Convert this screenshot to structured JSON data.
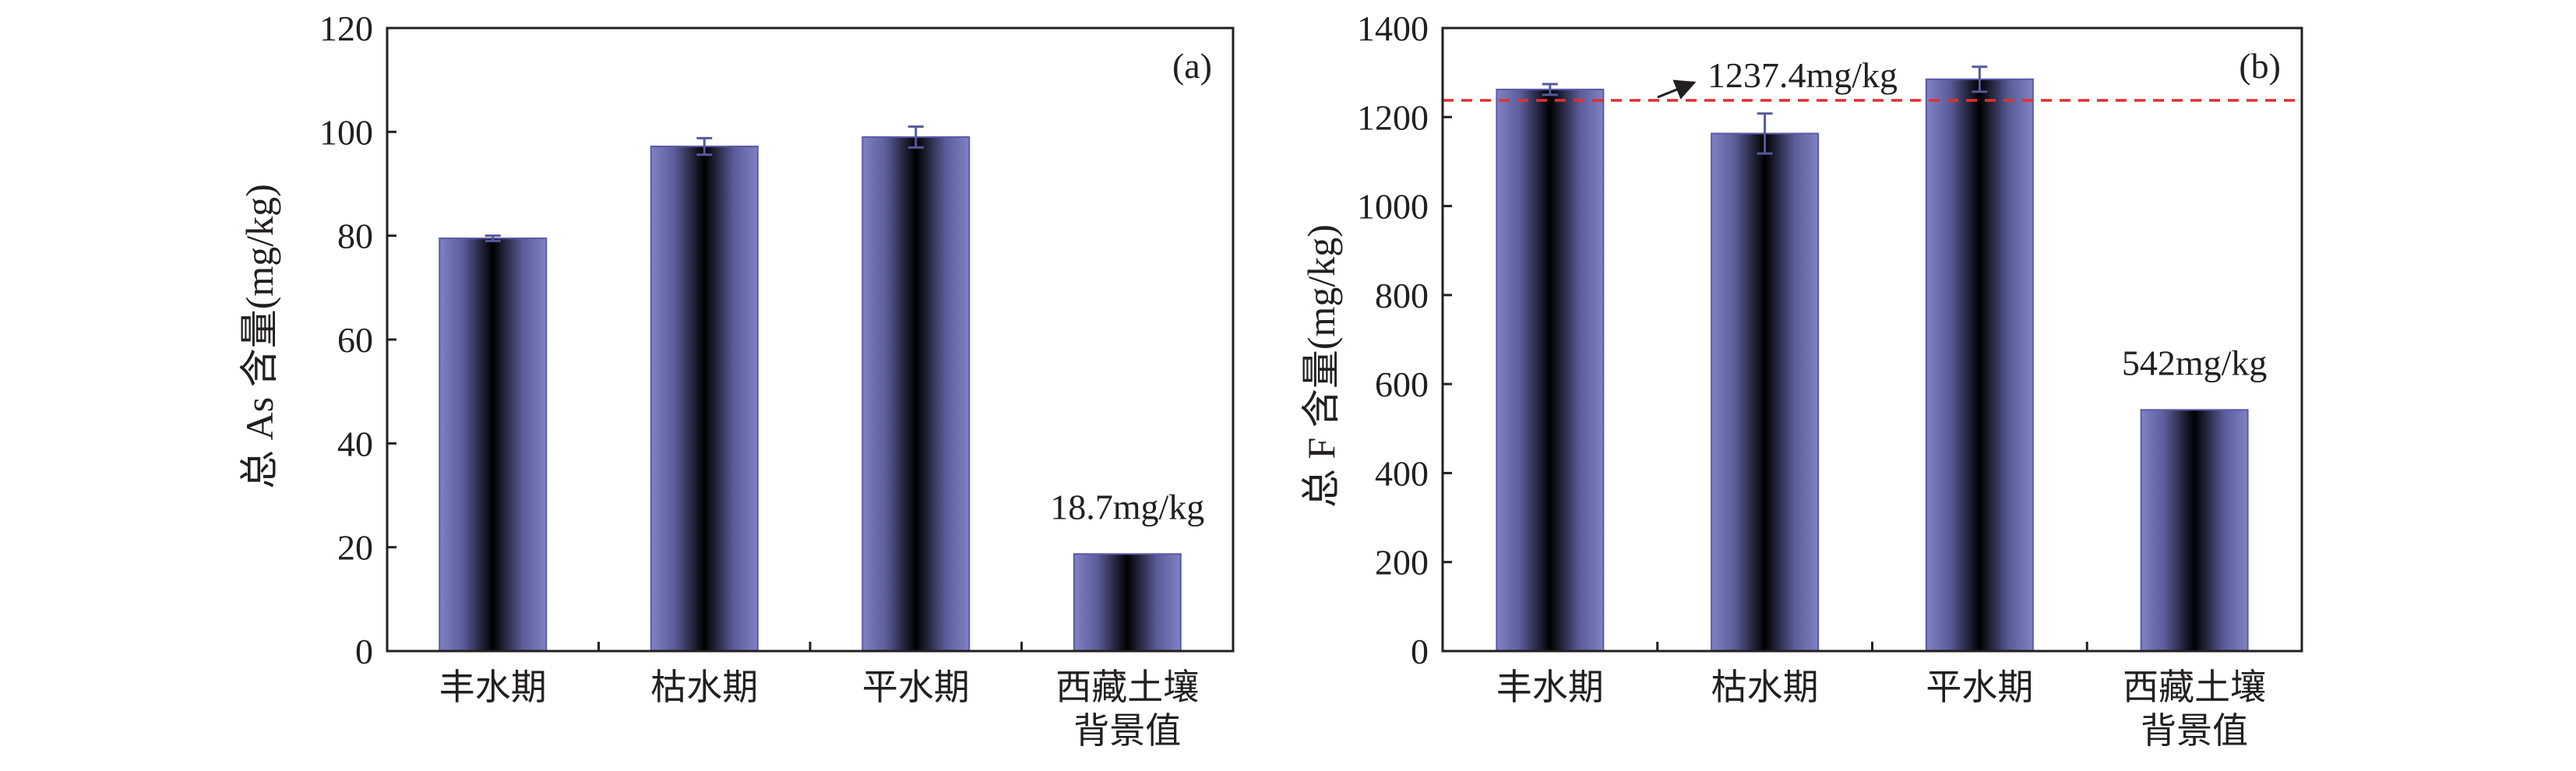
{
  "colors": {
    "bar_edge": "#7f82c4",
    "bar_center": "#000000",
    "bar_stroke": "#5a5aa8",
    "reference_line": "#e03030"
  },
  "chart_data": [
    {
      "type": "bar",
      "panel_label": "(a)",
      "categories": [
        "丰水期",
        "枯水期",
        "平水期",
        "西藏土壤\n背景值"
      ],
      "values": [
        79.5,
        97.2,
        99.0,
        18.7
      ],
      "errors": [
        0.5,
        1.6,
        2.0,
        0
      ],
      "ylabel": "总 As 含量(mg/kg)",
      "ylim": [
        0,
        120
      ],
      "yticks": [
        0,
        20,
        40,
        60,
        80,
        100,
        120
      ],
      "annotations": [
        {
          "text": "18.7mg/kg",
          "category_index": 3
        }
      ]
    },
    {
      "type": "bar",
      "panel_label": "(b)",
      "categories": [
        "丰水期",
        "枯水期",
        "平水期",
        "西藏土壤\n背景值"
      ],
      "values": [
        1262,
        1163,
        1285,
        542
      ],
      "errors": [
        12,
        45,
        28,
        0
      ],
      "ylabel": "总 F 含量(mg/kg)",
      "ylim": [
        0,
        1400
      ],
      "yticks": [
        0,
        200,
        400,
        600,
        800,
        1000,
        1200,
        1400
      ],
      "reference_line": {
        "value": 1237.4,
        "label": "1237.4mg/kg"
      },
      "annotations": [
        {
          "text": "542mg/kg",
          "category_index": 3
        }
      ]
    }
  ]
}
